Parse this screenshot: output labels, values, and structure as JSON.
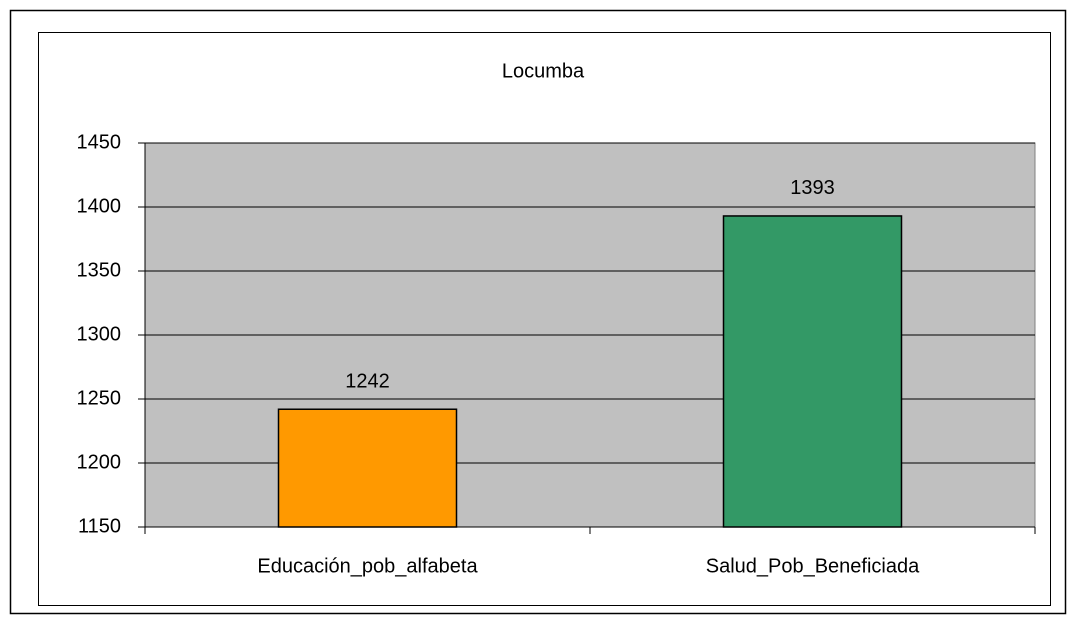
{
  "chart_data": {
    "type": "bar",
    "title": "Locumba",
    "categories": [
      "Educación_pob_alfabeta",
      "Salud_Pob_Beneficiada"
    ],
    "values": [
      1242,
      1393
    ],
    "colors": [
      "#ff9900",
      "#339966"
    ],
    "ylim": [
      1150,
      1450
    ],
    "yticks": [
      1150,
      1200,
      1250,
      1300,
      1350,
      1400,
      1450
    ],
    "grid": true,
    "data_labels": true
  }
}
